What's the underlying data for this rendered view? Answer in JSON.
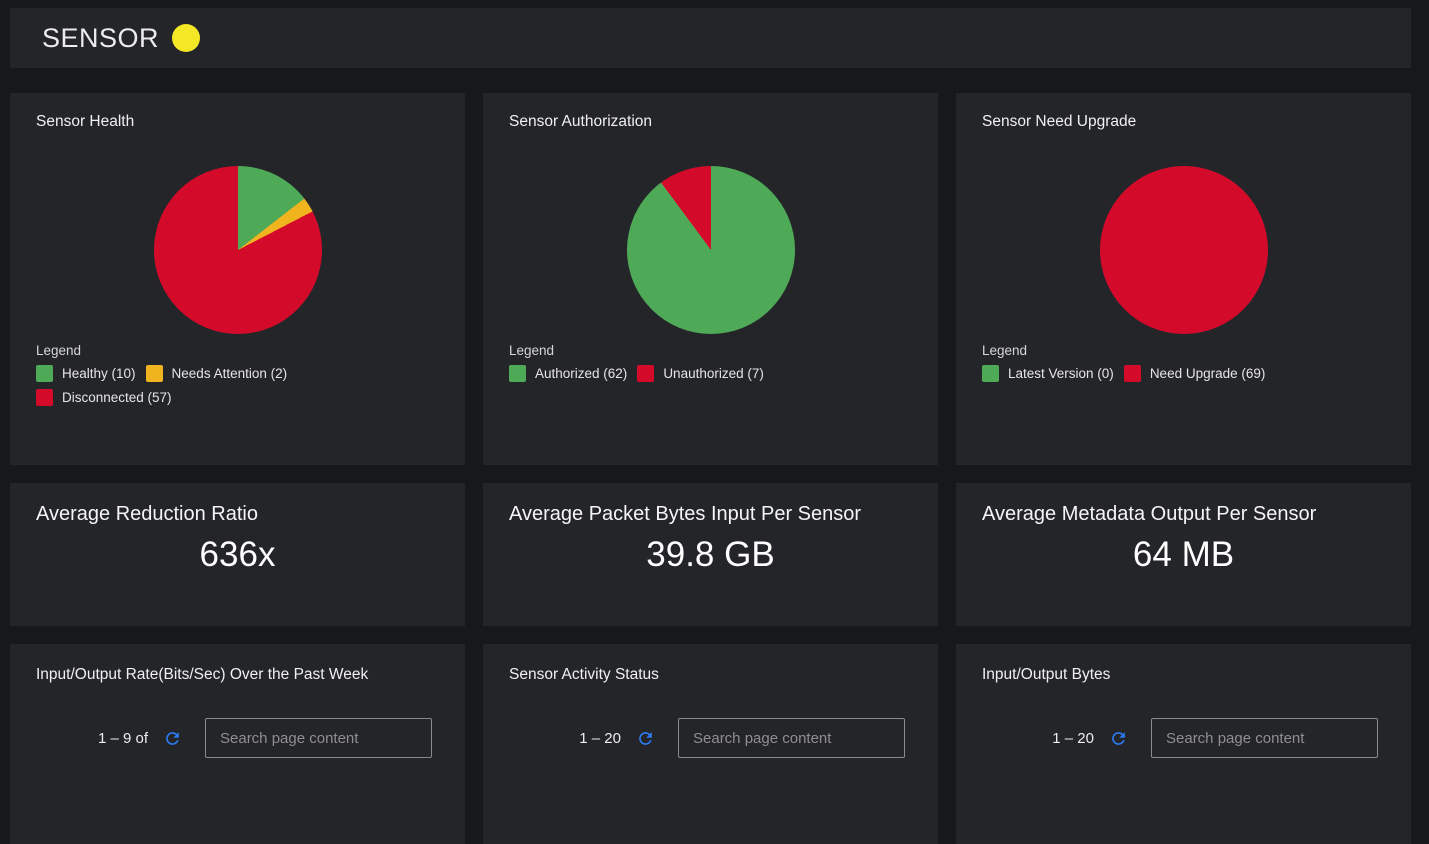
{
  "header": {
    "title": "SENSOR",
    "status_color": "#f4e726"
  },
  "ui": {
    "legend_label": "Legend",
    "refresh_icon_color": "#2b7bf3"
  },
  "chart_data": [
    {
      "type": "pie",
      "title": "Sensor Health",
      "labels": [
        "Healthy",
        "Needs Attention",
        "Disconnected"
      ],
      "values": [
        10,
        2,
        57
      ],
      "colors": [
        "#4faa58",
        "#f0b41e",
        "#d40a2a"
      ],
      "legend_position": "bottom"
    },
    {
      "type": "pie",
      "title": "Sensor Authorization",
      "labels": [
        "Authorized",
        "Unauthorized"
      ],
      "values": [
        62,
        7
      ],
      "colors": [
        "#4faa58",
        "#d40a2a"
      ],
      "legend_position": "bottom"
    },
    {
      "type": "pie",
      "title": "Sensor Need Upgrade",
      "labels": [
        "Latest Version",
        "Need Upgrade"
      ],
      "values": [
        0,
        69
      ],
      "colors": [
        "#4faa58",
        "#d40a2a"
      ],
      "legend_position": "bottom"
    }
  ],
  "metrics": [
    {
      "title": "Average Reduction Ratio",
      "value": "636x"
    },
    {
      "title": "Average Packet Bytes Input Per Sensor",
      "value": "39.8 GB"
    },
    {
      "title": "Average Metadata Output Per Sensor",
      "value": "64 MB"
    }
  ],
  "tables": [
    {
      "title": "Input/Output Rate(Bits/Sec) Over the Past Week",
      "pagination": "1 – 9 of",
      "search_placeholder": "Search page content"
    },
    {
      "title": "Sensor Activity Status",
      "pagination": "1 – 20",
      "search_placeholder": "Search page content"
    },
    {
      "title": "Input/Output Bytes",
      "pagination": "1 – 20",
      "search_placeholder": "Search page content"
    }
  ]
}
